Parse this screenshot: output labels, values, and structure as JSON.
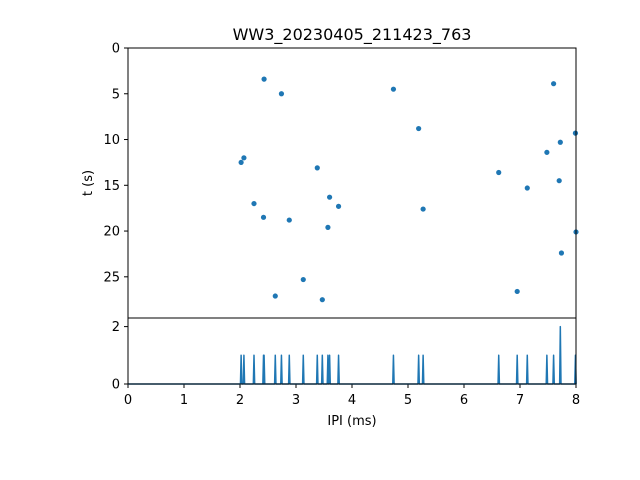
{
  "chart_data": [
    {
      "type": "scatter",
      "title": "WW3_20230405_211423_763",
      "xlabel": "",
      "ylabel": "t (s)",
      "xlim": [
        0,
        8
      ],
      "ylim": [
        0,
        29.5
      ],
      "y_inverted": true,
      "color": "#1f77b4",
      "yticks": [
        "0",
        "5",
        "10",
        "15",
        "20",
        "25"
      ],
      "points": [
        {
          "x": 2.43,
          "y": 3.4
        },
        {
          "x": 2.74,
          "y": 5.0
        },
        {
          "x": 4.74,
          "y": 4.5
        },
        {
          "x": 7.6,
          "y": 3.9
        },
        {
          "x": 5.19,
          "y": 8.8
        },
        {
          "x": 7.99,
          "y": 9.3
        },
        {
          "x": 7.72,
          "y": 10.3
        },
        {
          "x": 7.48,
          "y": 11.4
        },
        {
          "x": 2.07,
          "y": 12.0
        },
        {
          "x": 2.02,
          "y": 12.5
        },
        {
          "x": 3.38,
          "y": 13.1
        },
        {
          "x": 6.62,
          "y": 13.6
        },
        {
          "x": 7.7,
          "y": 14.5
        },
        {
          "x": 7.13,
          "y": 15.3
        },
        {
          "x": 3.6,
          "y": 16.3
        },
        {
          "x": 2.25,
          "y": 17.0
        },
        {
          "x": 3.76,
          "y": 17.3
        },
        {
          "x": 5.27,
          "y": 17.6
        },
        {
          "x": 2.42,
          "y": 18.5
        },
        {
          "x": 2.88,
          "y": 18.8
        },
        {
          "x": 3.57,
          "y": 19.6
        },
        {
          "x": 8.0,
          "y": 20.1
        },
        {
          "x": 7.74,
          "y": 22.4
        },
        {
          "x": 3.13,
          "y": 25.3
        },
        {
          "x": 6.95,
          "y": 26.6
        },
        {
          "x": 2.63,
          "y": 27.1
        },
        {
          "x": 3.47,
          "y": 27.5
        }
      ]
    },
    {
      "type": "line",
      "title": "",
      "xlabel": "IPI (ms)",
      "ylabel": "",
      "xlim": [
        0,
        8
      ],
      "ylim": [
        0,
        2.3
      ],
      "color": "#1f77b4",
      "xticks": [
        "0",
        "1",
        "2",
        "3",
        "4",
        "5",
        "6",
        "7",
        "8"
      ],
      "yticks": [
        "0",
        "2"
      ],
      "spikes": [
        {
          "x": 2.02,
          "y": 1
        },
        {
          "x": 2.07,
          "y": 1
        },
        {
          "x": 2.25,
          "y": 1
        },
        {
          "x": 2.42,
          "y": 1
        },
        {
          "x": 2.43,
          "y": 1
        },
        {
          "x": 2.63,
          "y": 1
        },
        {
          "x": 2.74,
          "y": 1
        },
        {
          "x": 2.88,
          "y": 1
        },
        {
          "x": 3.13,
          "y": 1
        },
        {
          "x": 3.38,
          "y": 1
        },
        {
          "x": 3.47,
          "y": 1
        },
        {
          "x": 3.57,
          "y": 1
        },
        {
          "x": 3.6,
          "y": 1
        },
        {
          "x": 3.76,
          "y": 1
        },
        {
          "x": 4.74,
          "y": 1
        },
        {
          "x": 5.19,
          "y": 1
        },
        {
          "x": 5.27,
          "y": 1
        },
        {
          "x": 6.62,
          "y": 1
        },
        {
          "x": 6.95,
          "y": 1
        },
        {
          "x": 7.13,
          "y": 1
        },
        {
          "x": 7.48,
          "y": 1
        },
        {
          "x": 7.6,
          "y": 1
        },
        {
          "x": 7.72,
          "y": 2
        },
        {
          "x": 7.99,
          "y": 1
        }
      ]
    }
  ]
}
